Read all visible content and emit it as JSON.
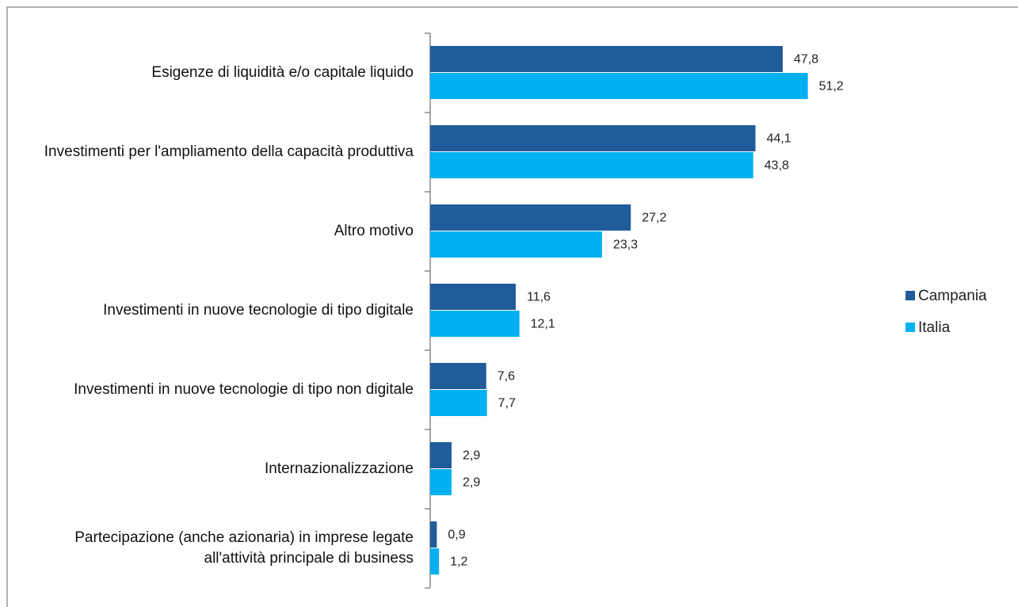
{
  "chart_data": {
    "type": "bar",
    "orientation": "horizontal",
    "categories": [
      "Esigenze di liquidità  e/o capitale liquido",
      "Investimenti per l'ampliamento della capacità produttiva",
      "Altro motivo",
      "Investimenti in nuove tecnologie di tipo digitale",
      "Investimenti in nuove tecnologie di tipo non digitale",
      "Internazionalizzazione",
      "Partecipazione (anche azionaria) in imprese legate all'attività  principale di business"
    ],
    "series": [
      {
        "name": "Campania",
        "color": "#1f5c99",
        "values": [
          47.8,
          44.1,
          27.2,
          11.6,
          7.6,
          2.9,
          0.9
        ],
        "value_labels": [
          "47,8",
          "44,1",
          "27,2",
          "11,6",
          "7,6",
          "2,9",
          "0,9"
        ]
      },
      {
        "name": "Italia",
        "color": "#00b0f0",
        "values": [
          51.2,
          43.8,
          23.3,
          12.1,
          7.7,
          2.9,
          1.2
        ],
        "value_labels": [
          "51,2",
          "43,8",
          "23,3",
          "12,1",
          "7,7",
          "2,9",
          "1,2"
        ]
      }
    ],
    "legend": "right"
  }
}
